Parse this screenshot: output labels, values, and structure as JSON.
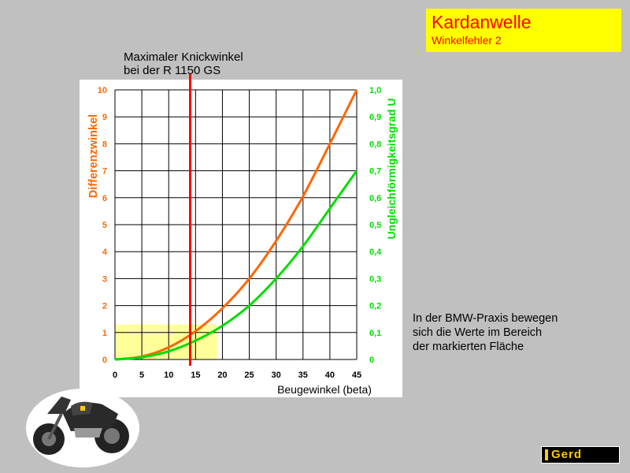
{
  "header": {
    "title": "Kardanwelle",
    "subtitle": "Winkelfehler 2"
  },
  "marker": {
    "label_line1": "Maximaler Knickwinkel",
    "label_line2": "bei der R 1150 GS",
    "beta": 14,
    "color": "#ff0000"
  },
  "note": {
    "line1": "In der BMW-Praxis bewegen",
    "line2": "sich die Werte im Bereich",
    "line3": "der markierten Fläche"
  },
  "logo": {
    "text": "Gerd"
  },
  "colors": {
    "background": "#c0c0c0",
    "title_box": "#ffff00",
    "title_text": "#ff0000",
    "left_axis": "#ff6600",
    "right_axis": "#00dd00",
    "highlight": "#ffff99"
  },
  "chart_data": {
    "type": "line",
    "xlabel": "Beugewinkel (beta)",
    "ylabel_left": "Differenzwinkel",
    "ylabel_right": "Ungleichförmigkeitsgrad U",
    "xlim": [
      0,
      45
    ],
    "ylim_left": [
      0,
      10
    ],
    "ylim_right": [
      0,
      1.0
    ],
    "x_ticks": [
      "0",
      "5",
      "10",
      "15",
      "20",
      "25",
      "30",
      "35",
      "40",
      "45"
    ],
    "y_ticks_left": [
      "0",
      "1",
      "2",
      "3",
      "4",
      "5",
      "6",
      "7",
      "8",
      "9",
      "10"
    ],
    "y_ticks_right": [
      "0",
      "0,1",
      "0,2",
      "0,3",
      "0,4",
      "0,5",
      "0,6",
      "0,7",
      "0,8",
      "0,9",
      "1,0"
    ],
    "grid": true,
    "highlight_region": {
      "x": [
        0,
        19
      ],
      "y_left": [
        0,
        1.3
      ]
    },
    "series": [
      {
        "axis": "left",
        "color": "#ff6600",
        "x": [
          0,
          5,
          10,
          15,
          20,
          25,
          30,
          35,
          40,
          45
        ],
        "y": [
          0.0,
          0.11,
          0.45,
          1.05,
          1.9,
          3.0,
          4.4,
          6.05,
          8.0,
          10.0
        ]
      },
      {
        "axis": "right",
        "color": "#00dd00",
        "x": [
          0,
          5,
          10,
          15,
          20,
          25,
          30,
          35,
          40,
          45
        ],
        "y": [
          0.0,
          0.008,
          0.03,
          0.07,
          0.125,
          0.2,
          0.3,
          0.42,
          0.56,
          0.7
        ]
      }
    ]
  }
}
